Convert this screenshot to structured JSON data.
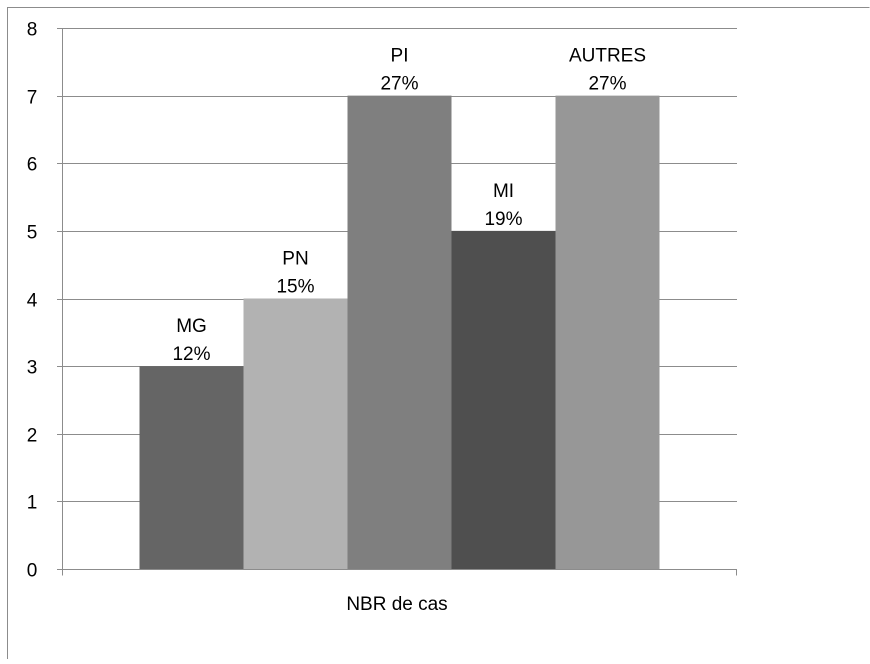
{
  "chart_data": {
    "type": "bar",
    "categories": [
      "NBR de cas"
    ],
    "series": [
      {
        "name": "MG",
        "values": [
          3
        ],
        "percent": "12%",
        "color": "#656565"
      },
      {
        "name": "PN",
        "values": [
          4
        ],
        "percent": "15%",
        "color": "#b2b2b2"
      },
      {
        "name": "PI",
        "values": [
          7
        ],
        "percent": "27%",
        "color": "#7f7f7f"
      },
      {
        "name": "MI",
        "values": [
          5
        ],
        "percent": "19%",
        "color": "#4f4f4f"
      },
      {
        "name": "AUTRES",
        "values": [
          7
        ],
        "percent": "27%",
        "color": "#979797"
      }
    ],
    "xlabel": "NBR de cas",
    "ylabel": "",
    "ylim": [
      0,
      8
    ],
    "yticks": [
      0,
      1,
      2,
      3,
      4,
      5,
      6,
      7,
      8
    ],
    "grid": true,
    "legend": "none"
  }
}
